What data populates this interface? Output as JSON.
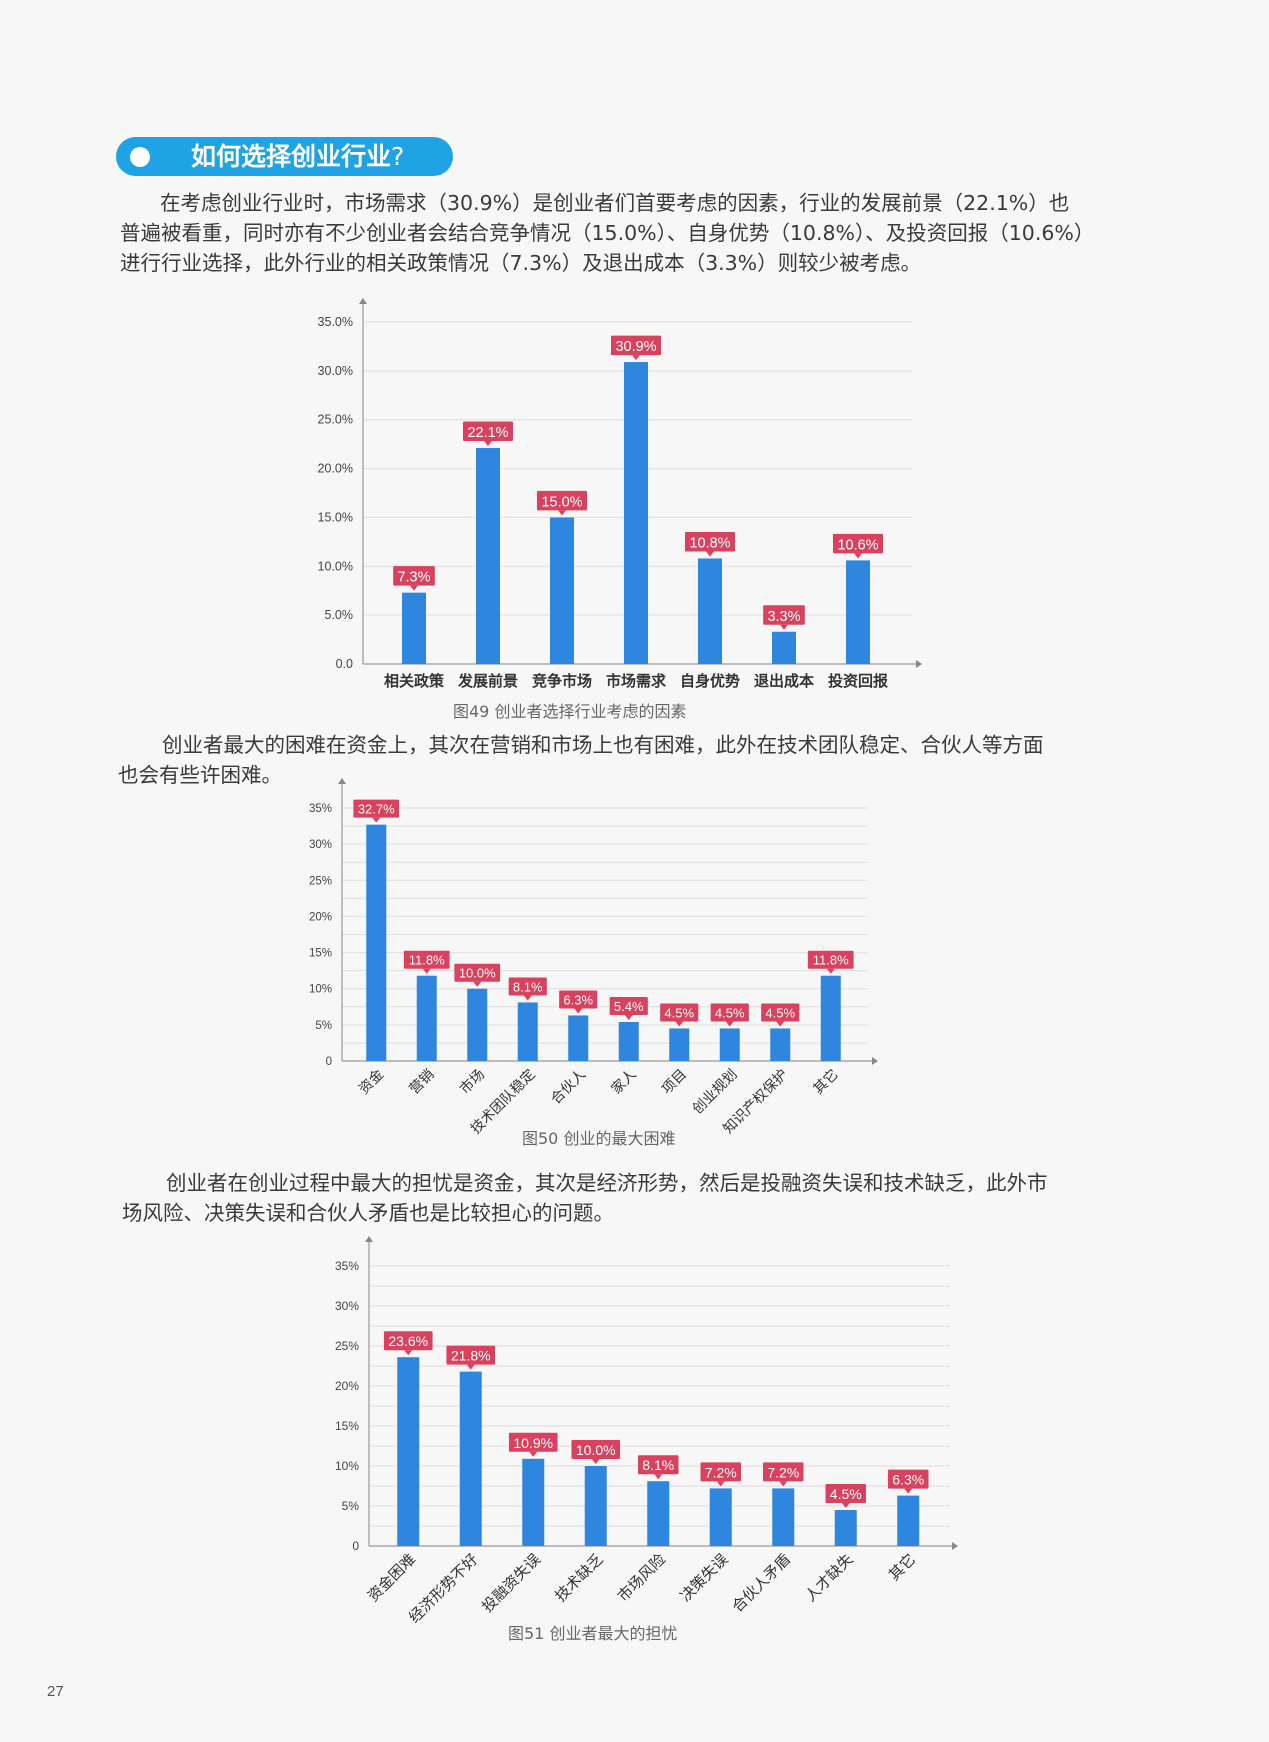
{
  "section": {
    "title": "如何选择创业行业",
    "title_mark": "?"
  },
  "paragraphs": [
    {
      "lines": [
        "在考虑创业行业时，市场需求（30.9%）是创业者们首要考虑的因素，行业的发展前景（22.1%）也",
        "普遍被看重，同时亦有不少创业者会结合竞争情况（15.0%）、自身优势（10.8%）、及投资回报（10.6%）",
        "进行行业选择，此外行业的相关政策情况（7.3%）及退出成本（3.3%）则较少被考虑。"
      ]
    },
    {
      "lines": [
        "创业者最大的困难在资金上，其次在营销和市场上也有困难，此外在技术团队稳定、合伙人等方面",
        "也会有些许困难。"
      ]
    },
    {
      "lines": [
        "创业者在创业过程中最大的担忧是资金，其次是经济形势，然后是投融资失误和技术缺乏，此外市",
        "场风险、决策失误和合伙人矛盾也是比较担心的问题。"
      ]
    }
  ],
  "colors": {
    "bar": "#2e86de",
    "label_bg": "#d9425e",
    "heading": "#1fa3e4"
  },
  "chart_data": [
    {
      "type": "bar",
      "title": "",
      "caption": "图49 创业者选择行业考虑的因素",
      "categories": [
        "相关政策",
        "发展前景",
        "竞争市场",
        "市场需求",
        "自身优势",
        "退出成本",
        "投资回报"
      ],
      "values": [
        7.3,
        22.1,
        15.0,
        30.9,
        10.8,
        3.3,
        10.6
      ],
      "value_labels": [
        "7.3%",
        "22.1%",
        "15.0%",
        "30.9%",
        "10.8%",
        "3.3%",
        "10.6%"
      ],
      "ylim": [
        0,
        35
      ],
      "yticks": [
        0,
        5,
        10,
        15,
        20,
        25,
        30,
        35
      ],
      "ytick_labels": [
        "0.0",
        "5.0%",
        "10.0%",
        "15.0%",
        "20.0%",
        "25.0%",
        "30.0%",
        "35.0%"
      ],
      "xlabel": "",
      "ylabel": "",
      "grid": true,
      "x_label_rotation": 0
    },
    {
      "type": "bar",
      "title": "",
      "caption": "图50 创业的最大困难",
      "categories": [
        "资金",
        "营销",
        "市场",
        "技术团队稳定",
        "合伙人",
        "家人",
        "项目",
        "创业规划",
        "知识产权保护",
        "其它"
      ],
      "values": [
        32.7,
        11.8,
        10.0,
        8.1,
        6.3,
        5.4,
        4.5,
        4.5,
        4.5,
        11.8
      ],
      "value_labels": [
        "32.7%",
        "11.8%",
        "10.0%",
        "8.1%",
        "6.3%",
        "5.4%",
        "4.5%",
        "4.5%",
        "4.5%",
        "11.8%"
      ],
      "ylim": [
        0,
        35
      ],
      "yticks": [
        0,
        5,
        10,
        15,
        20,
        25,
        30,
        35
      ],
      "ytick_labels": [
        "0",
        "5%",
        "10%",
        "15%",
        "20%",
        "25%",
        "30%",
        "35%"
      ],
      "xlabel": "",
      "ylabel": "",
      "grid": true,
      "x_label_rotation": -45
    },
    {
      "type": "bar",
      "title": "",
      "caption": "图51 创业者最大的担忧",
      "categories": [
        "资金困难",
        "经济形势不好",
        "投融资失误",
        "技术缺乏",
        "市场风险",
        "决策失误",
        "合伙人矛盾",
        "人才缺失",
        "其它"
      ],
      "values": [
        23.6,
        21.8,
        10.9,
        10.0,
        8.1,
        7.2,
        7.2,
        4.5,
        6.3
      ],
      "value_labels": [
        "23.6%",
        "21.8%",
        "10.9%",
        "10.0%",
        "8.1%",
        "7.2%",
        "7.2%",
        "4.5%",
        "6.3%"
      ],
      "ylim": [
        0,
        35
      ],
      "yticks": [
        0,
        5,
        10,
        15,
        20,
        25,
        30,
        35
      ],
      "ytick_labels": [
        "0",
        "5%",
        "10%",
        "15%",
        "20%",
        "25%",
        "30%",
        "35%"
      ],
      "xlabel": "",
      "ylabel": "",
      "grid": true,
      "x_label_rotation": -45
    }
  ],
  "page_number": "27"
}
